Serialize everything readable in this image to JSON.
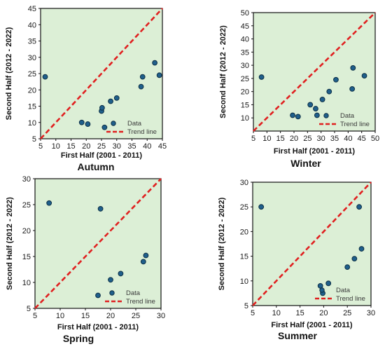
{
  "chart_data": [
    {
      "type": "scatter",
      "title": "Autumn",
      "xlabel": "First Half (2001 - 2011)",
      "ylabel": "Second Half (2012 - 2022)",
      "xlim": [
        5,
        45
      ],
      "ylim": [
        5,
        45
      ],
      "xticks": [
        5,
        10,
        15,
        20,
        25,
        30,
        35,
        40,
        45
      ],
      "yticks": [
        5,
        10,
        15,
        20,
        25,
        30,
        35,
        40,
        45
      ],
      "legend": {
        "position": "bottom-right",
        "data_label": "Data",
        "trend_label": "Trend line"
      },
      "grid": false,
      "colors": {
        "plot_bg": "#dcefd6",
        "point": "#1f5f8b",
        "point_edge": "#0d2f45",
        "trend": "#e02020"
      },
      "trend_line": [
        [
          5,
          5
        ],
        [
          45,
          45
        ]
      ],
      "points": [
        [
          6.5,
          24
        ],
        [
          18.5,
          10
        ],
        [
          20.5,
          9.5
        ],
        [
          25,
          13.5
        ],
        [
          25.2,
          14.5
        ],
        [
          26,
          8.5
        ],
        [
          28,
          16.5
        ],
        [
          30,
          17.5
        ],
        [
          38,
          21
        ],
        [
          38.5,
          24
        ],
        [
          42.5,
          28.3
        ],
        [
          44,
          24.5
        ]
      ]
    },
    {
      "type": "scatter",
      "title": "Winter",
      "xlabel": "First Half (2001 - 2011)",
      "ylabel": "Second Half (2012 - 2022)",
      "xlim": [
        5,
        50
      ],
      "ylim": [
        5,
        50
      ],
      "xticks": [
        5,
        10,
        15,
        20,
        25,
        30,
        35,
        40,
        45,
        50
      ],
      "yticks": [
        10,
        15,
        20,
        25,
        30,
        35,
        40,
        45,
        50
      ],
      "legend": {
        "position": "bottom-right",
        "data_label": "Data",
        "trend_label": "Trend line"
      },
      "grid": false,
      "colors": {
        "plot_bg": "#dcefd6",
        "point": "#1f5f8b",
        "point_edge": "#0d2f45",
        "trend": "#e02020"
      },
      "trend_line": [
        [
          5,
          5
        ],
        [
          50,
          50
        ]
      ],
      "points": [
        [
          8,
          25.5
        ],
        [
          19.5,
          11
        ],
        [
          21.5,
          10.5
        ],
        [
          26,
          15
        ],
        [
          28,
          13.5
        ],
        [
          28.5,
          11
        ],
        [
          30.5,
          17
        ],
        [
          33,
          20
        ],
        [
          35.5,
          24.5
        ],
        [
          41.5,
          21
        ],
        [
          41.8,
          29
        ],
        [
          46,
          26
        ]
      ]
    },
    {
      "type": "scatter",
      "title": "Spring",
      "xlabel": "First Half (2001 - 2011)",
      "ylabel": "Second Half (2012 - 2022)",
      "xlim": [
        5,
        30
      ],
      "ylim": [
        5,
        30
      ],
      "xticks": [
        5,
        10,
        15,
        20,
        25,
        30
      ],
      "yticks": [
        5,
        10,
        15,
        20,
        25,
        30
      ],
      "legend": {
        "position": "bottom-right",
        "data_label": "Data",
        "trend_label": "Trend line"
      },
      "grid": false,
      "colors": {
        "plot_bg": "#dcefd6",
        "point": "#1f5f8b",
        "point_edge": "#0d2f45",
        "trend": "#e02020"
      },
      "trend_line": [
        [
          5,
          5
        ],
        [
          30,
          30
        ]
      ],
      "points": [
        [
          7.8,
          25.3
        ],
        [
          17.5,
          7.5
        ],
        [
          18,
          24.2
        ],
        [
          20,
          10.5
        ],
        [
          22,
          11.7
        ],
        [
          26.5,
          14
        ],
        [
          27,
          15.2
        ]
      ]
    },
    {
      "type": "scatter",
      "title": "Summer",
      "xlabel": "First Half (2001 - 2011)",
      "ylabel": "Second Half (2012 - 2022)",
      "xlim": [
        5,
        30
      ],
      "ylim": [
        5,
        30
      ],
      "xticks": [
        5,
        10,
        15,
        20,
        25,
        30
      ],
      "yticks": [
        5,
        10,
        15,
        20,
        25,
        30
      ],
      "legend": {
        "position": "bottom-right",
        "data_label": "Data",
        "trend_label": "Trend line"
      },
      "grid": false,
      "colors": {
        "plot_bg": "#dcefd6",
        "point": "#1f5f8b",
        "point_edge": "#0d2f45",
        "trend": "#e02020"
      },
      "trend_line": [
        [
          5,
          5
        ],
        [
          30,
          30
        ]
      ],
      "points": [
        [
          6.8,
          25
        ],
        [
          19.3,
          9
        ],
        [
          19.8,
          7.5
        ],
        [
          21,
          9.5
        ],
        [
          25,
          12.8
        ],
        [
          26.5,
          14.5
        ],
        [
          27.5,
          25
        ],
        [
          28,
          16.5
        ]
      ]
    }
  ]
}
